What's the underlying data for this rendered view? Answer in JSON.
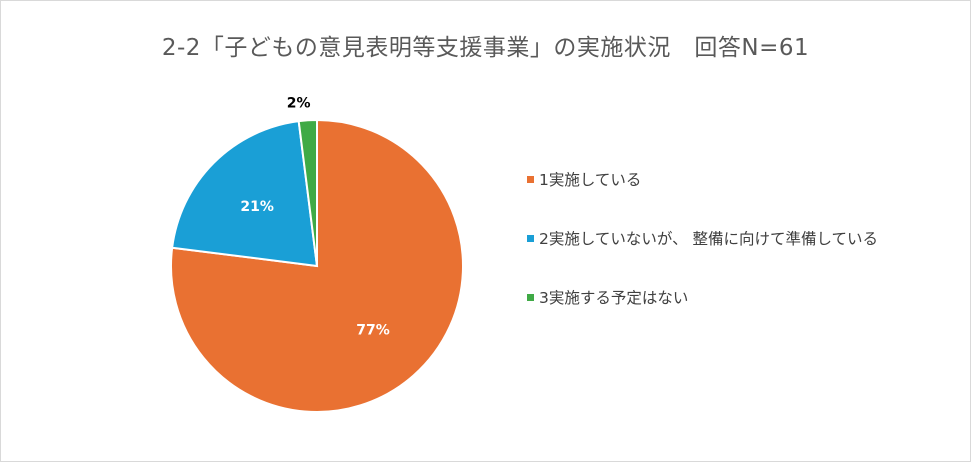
{
  "chart_data": {
    "type": "pie",
    "title": "2-2「子どもの意見表明等支援事業」の実施状況　回答N=61",
    "slices": [
      {
        "label": "1実施している",
        "value": 77,
        "display": "77%",
        "color": "#E97132"
      },
      {
        "label": "2実施していないが、 整備に向けて準備している",
        "value": 21,
        "display": "21%",
        "color": "#1A9FD6"
      },
      {
        "label": "3実施する予定はない",
        "value": 2,
        "display": "2%",
        "color": "#3FAA46"
      }
    ],
    "legend_position": "right",
    "label_colors": {
      "inside": "#ffffff",
      "outside": "#000000"
    },
    "slice_border_color": "#ffffff"
  }
}
